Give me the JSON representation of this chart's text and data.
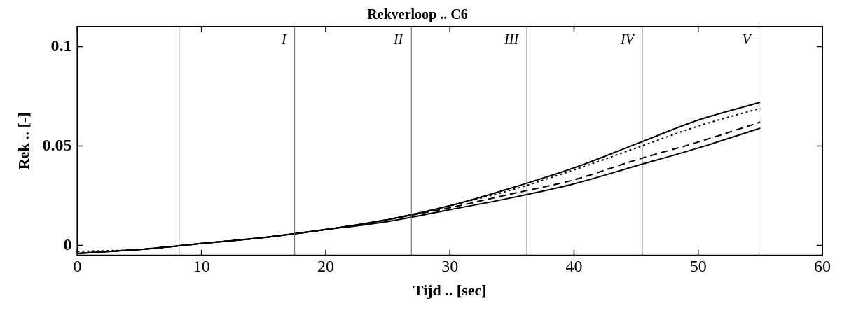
{
  "chart_data": {
    "type": "line",
    "title": "Rekverloop .. C6",
    "xlabel": "Tijd .. [sec]",
    "ylabel": "Rek .. [-]",
    "x": [
      0,
      5,
      10,
      15,
      20,
      25,
      30,
      35,
      40,
      45,
      50,
      55
    ],
    "series": [
      {
        "color": "#000000",
        "line_style": "solid",
        "values": [
          -0.004,
          -0.002,
          0.001,
          0.004,
          0.008,
          0.013,
          0.02,
          0.029,
          0.039,
          0.051,
          0.063,
          0.072
        ]
      },
      {
        "color": "#000000",
        "line_style": "dotted",
        "values": [
          -0.003,
          -0.002,
          0.001,
          0.004,
          0.008,
          0.013,
          0.02,
          0.028,
          0.038,
          0.049,
          0.06,
          0.069
        ]
      },
      {
        "color": "#000000",
        "line_style": "dashed",
        "values": [
          -0.004,
          -0.002,
          0.001,
          0.004,
          0.008,
          0.013,
          0.019,
          0.026,
          0.033,
          0.043,
          0.052,
          0.062
        ]
      },
      {
        "color": "#000000",
        "line_style": "solid",
        "values": [
          -0.004,
          -0.002,
          0.001,
          0.004,
          0.008,
          0.012,
          0.018,
          0.024,
          0.031,
          0.04,
          0.049,
          0.059
        ]
      }
    ],
    "xlim": [
      0,
      60
    ],
    "xticks": [
      0,
      10,
      20,
      30,
      40,
      50,
      60
    ],
    "ylim": [
      -0.005,
      0.11
    ],
    "yticks": [
      0,
      0.05,
      0.1
    ],
    "ref_lines": [
      {
        "axis": "x",
        "value": 8.2,
        "label": null
      },
      {
        "axis": "x",
        "value": 17.5,
        "label": "I"
      },
      {
        "axis": "x",
        "value": 26.9,
        "label": "II"
      },
      {
        "axis": "x",
        "value": 36.2,
        "label": "III"
      },
      {
        "axis": "x",
        "value": 45.5,
        "label": "IV"
      },
      {
        "axis": "x",
        "value": 54.9,
        "label": "V"
      }
    ],
    "grid": false,
    "legend": false,
    "marker": "none"
  }
}
